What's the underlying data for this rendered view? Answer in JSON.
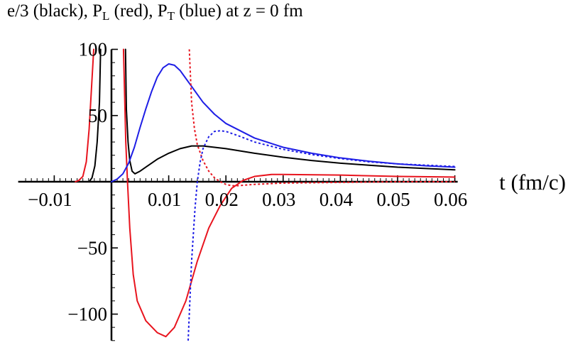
{
  "title": {
    "parts": [
      {
        "text": "e/3 (black), P"
      },
      {
        "text": "L",
        "sub": true
      },
      {
        "text": " (red), P"
      },
      {
        "text": "T",
        "sub": true
      },
      {
        "text": " (blue) at z = 0  fm"
      }
    ]
  },
  "chart_data": {
    "type": "line",
    "title": "e/3 (black), P_L (red), P_T (blue) at z = 0  fm",
    "xlabel": "t (fm/c)",
    "ylabel": "",
    "xlim": [
      -0.0163,
      0.0605
    ],
    "ylim": [
      -120,
      100
    ],
    "grid": false,
    "xticks": [
      {
        "value": -0.01,
        "label": "−0.01"
      },
      {
        "value": 0.01,
        "label": "0.01"
      },
      {
        "value": 0.02,
        "label": "0.02"
      },
      {
        "value": 0.03,
        "label": "0.03"
      },
      {
        "value": 0.04,
        "label": "0.04"
      },
      {
        "value": 0.05,
        "label": "0.05"
      },
      {
        "value": 0.06,
        "label": "0.06"
      }
    ],
    "yticks": [
      {
        "value": 100,
        "label": "100"
      },
      {
        "value": 50,
        "label": "50"
      },
      {
        "value": -50,
        "label": "−50"
      },
      {
        "value": -100,
        "label": "−100"
      }
    ],
    "series": [
      {
        "name": "e/3",
        "color": "#000000",
        "dash": false,
        "segments": [
          [
            [
              -0.0039,
              0
            ],
            [
              -0.0034,
              3
            ],
            [
              -0.0029,
              12
            ],
            [
              -0.0025,
              30
            ],
            [
              -0.0021,
              60
            ],
            [
              -0.0019,
              100
            ]
          ],
          [
            [
              0.00245,
              100
            ],
            [
              0.0026,
              55
            ],
            [
              0.0029,
              30
            ],
            [
              0.0032,
              16
            ],
            [
              0.0036,
              8
            ],
            [
              0.0041,
              6
            ],
            [
              0.005,
              8
            ],
            [
              0.006,
              11
            ],
            [
              0.008,
              17
            ],
            [
              0.01,
              21.5
            ],
            [
              0.012,
              25
            ],
            [
              0.014,
              27
            ],
            [
              0.016,
              27
            ],
            [
              0.02,
              25
            ],
            [
              0.025,
              21.5
            ],
            [
              0.03,
              18.5
            ],
            [
              0.035,
              16
            ],
            [
              0.04,
              14
            ],
            [
              0.045,
              12.5
            ],
            [
              0.05,
              11
            ],
            [
              0.055,
              10
            ],
            [
              0.06,
              9
            ]
          ]
        ]
      },
      {
        "name": "P_L",
        "color": "#e8141e",
        "dash": false,
        "segments": [
          [
            [
              -0.0063,
              0
            ],
            [
              -0.0057,
              1
            ],
            [
              -0.005,
              4
            ],
            [
              -0.0044,
              15
            ],
            [
              -0.0039,
              40
            ],
            [
              -0.0035,
              70
            ],
            [
              -0.0031,
              100
            ]
          ],
          [
            [
              0.0021,
              100
            ],
            [
              0.0025,
              30
            ],
            [
              0.0028,
              0
            ],
            [
              0.0032,
              -35
            ],
            [
              0.0038,
              -70
            ],
            [
              0.0045,
              -90
            ],
            [
              0.006,
              -105
            ],
            [
              0.008,
              -114
            ],
            [
              0.0095,
              -117
            ],
            [
              0.011,
              -110
            ],
            [
              0.013,
              -90
            ],
            [
              0.015,
              -60
            ],
            [
              0.017,
              -35
            ],
            [
              0.019,
              -18
            ],
            [
              0.021,
              -5
            ],
            [
              0.023,
              1
            ],
            [
              0.025,
              4
            ],
            [
              0.028,
              5.5
            ],
            [
              0.03,
              5.5
            ],
            [
              0.04,
              5
            ],
            [
              0.05,
              4
            ],
            [
              0.06,
              3.5
            ]
          ]
        ]
      },
      {
        "name": "P_T",
        "color": "#1e1ee6",
        "dash": false,
        "segments": [
          [
            [
              0.0,
              0
            ],
            [
              0.001,
              2
            ],
            [
              0.002,
              6
            ],
            [
              0.003,
              14
            ],
            [
              0.004,
              26
            ],
            [
              0.005,
              41
            ],
            [
              0.006,
              55
            ],
            [
              0.007,
              68
            ],
            [
              0.008,
              79
            ],
            [
              0.009,
              86
            ],
            [
              0.01,
              89
            ],
            [
              0.011,
              88
            ],
            [
              0.012,
              84
            ],
            [
              0.014,
              72
            ],
            [
              0.016,
              60
            ],
            [
              0.018,
              51
            ],
            [
              0.02,
              44
            ],
            [
              0.025,
              33
            ],
            [
              0.03,
              26
            ],
            [
              0.035,
              21.5
            ],
            [
              0.04,
              18
            ],
            [
              0.045,
              15.5
            ],
            [
              0.05,
              13.5
            ],
            [
              0.055,
              12
            ],
            [
              0.06,
              11
            ]
          ]
        ]
      },
      {
        "name": "P_L (dotted)",
        "color": "#e8141e",
        "dash": true,
        "segments": [
          [
            [
              0.0136,
              100
            ],
            [
              0.0138,
              80
            ],
            [
              0.014,
              60
            ],
            [
              0.0145,
              40
            ],
            [
              0.015,
              28
            ],
            [
              0.016,
              16
            ],
            [
              0.017,
              8
            ],
            [
              0.018,
              3
            ],
            [
              0.019,
              0
            ],
            [
              0.02,
              -2
            ],
            [
              0.021,
              -3
            ],
            [
              0.022,
              -3
            ],
            [
              0.025,
              -2
            ],
            [
              0.03,
              -1
            ],
            [
              0.04,
              -0.5
            ],
            [
              0.05,
              0
            ],
            [
              0.06,
              0
            ]
          ]
        ]
      },
      {
        "name": "P_T (dotted)",
        "color": "#1e1ee6",
        "dash": true,
        "segments": [
          [
            [
              0.0134,
              -120
            ],
            [
              0.0136,
              -100
            ],
            [
              0.0138,
              -80
            ],
            [
              0.014,
              -60
            ],
            [
              0.0143,
              -40
            ],
            [
              0.0146,
              -20
            ],
            [
              0.015,
              0
            ],
            [
              0.0155,
              15
            ],
            [
              0.016,
              25
            ],
            [
              0.017,
              34
            ],
            [
              0.018,
              38
            ],
            [
              0.019,
              38.5
            ],
            [
              0.02,
              38
            ],
            [
              0.022,
              35
            ],
            [
              0.025,
              30
            ],
            [
              0.03,
              24.5
            ],
            [
              0.035,
              20.5
            ],
            [
              0.04,
              17.5
            ],
            [
              0.045,
              15
            ],
            [
              0.05,
              13.5
            ],
            [
              0.055,
              12.5
            ],
            [
              0.06,
              11.5
            ]
          ]
        ]
      }
    ]
  }
}
